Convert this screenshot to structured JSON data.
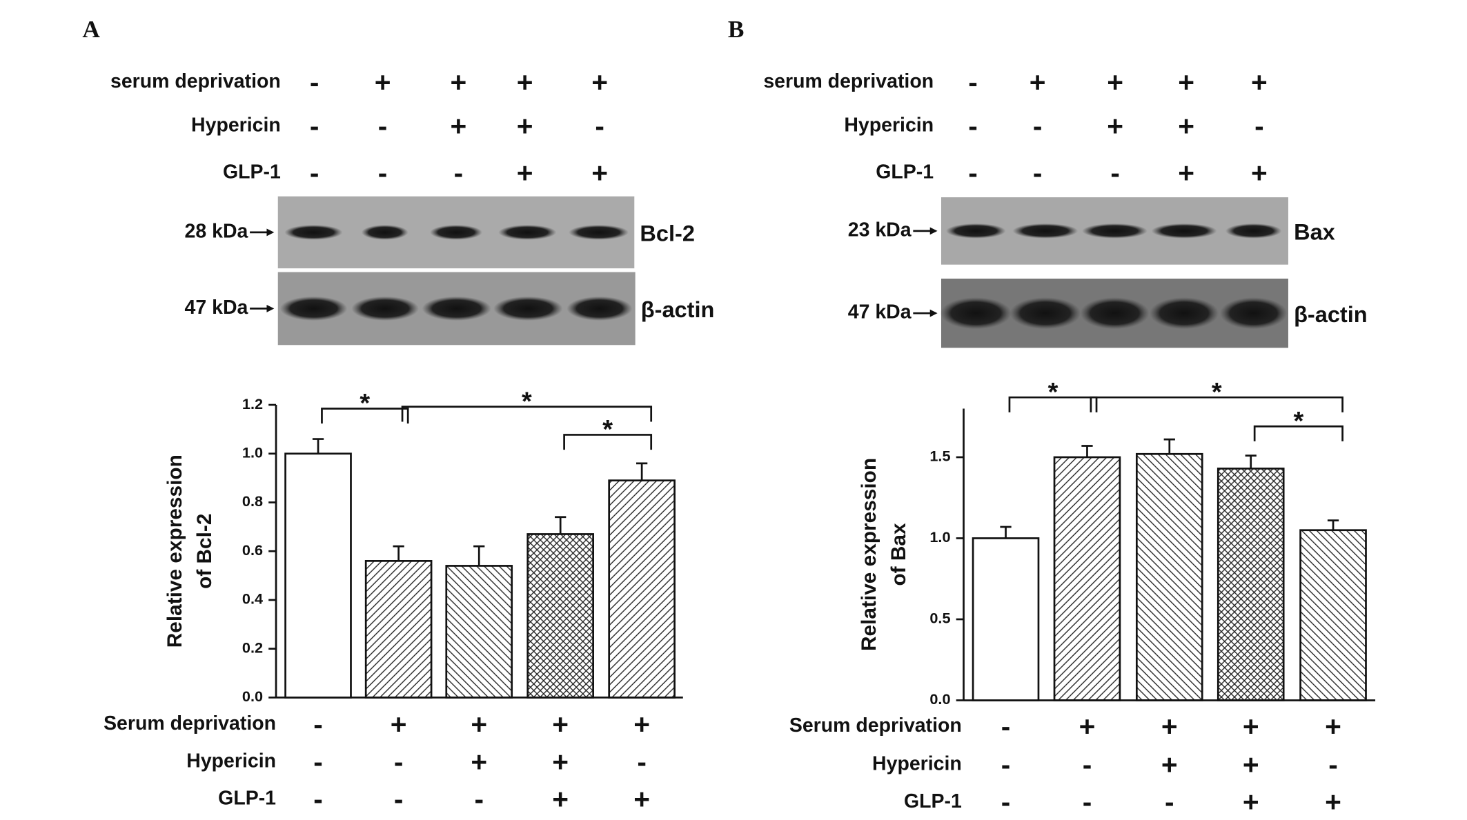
{
  "chart_data": [
    {
      "type": "bar",
      "panel": "A",
      "blot_conditions": [
        {
          "name": "serum deprivation",
          "values": [
            "-",
            "+",
            "+",
            "+",
            "+"
          ]
        },
        {
          "name": "Hypericin",
          "values": [
            "-",
            "-",
            "+",
            "+",
            "-"
          ]
        },
        {
          "name": "GLP-1",
          "values": [
            "-",
            "-",
            "-",
            "+",
            "+"
          ]
        }
      ],
      "blots": [
        {
          "size": "28 kDa",
          "protein": "Bcl-2"
        },
        {
          "size": "47 kDa",
          "protein": "β-actin"
        }
      ],
      "y_label": [
        "Relative expression",
        "of Bcl-2"
      ],
      "values": [
        1.0,
        0.56,
        0.54,
        0.67,
        0.89
      ],
      "errors": [
        0.06,
        0.06,
        0.08,
        0.07,
        0.07
      ],
      "patterns": [
        "none",
        "forward",
        "backward",
        "cross",
        "forward"
      ],
      "ylim": [
        0,
        1.2
      ],
      "yticks": [
        {
          "value": 0,
          "label": "0.0"
        },
        0.2,
        0.4,
        0.6,
        0.8,
        {
          "value": 1,
          "label": "1.0"
        },
        1.2
      ],
      "significance": [
        {
          "from": 0,
          "to": 1,
          "label": "*"
        },
        {
          "from": 1,
          "to": 4,
          "label": "*"
        },
        {
          "from": 3,
          "to": 4,
          "label": "*"
        }
      ],
      "conditions": [
        {
          "name": "Serum deprivation",
          "values": [
            "-",
            "+",
            "+",
            "+",
            "+"
          ]
        },
        {
          "name": "Hypericin",
          "values": [
            "-",
            "-",
            "+",
            "+",
            "-"
          ]
        },
        {
          "name": "GLP-1",
          "values": [
            "-",
            "-",
            "-",
            "+",
            "+"
          ]
        }
      ]
    },
    {
      "type": "bar",
      "panel": "B",
      "blot_conditions": [
        {
          "name": "serum deprivation",
          "values": [
            "-",
            "+",
            "+",
            "+",
            "+"
          ]
        },
        {
          "name": "Hypericin",
          "values": [
            "-",
            "-",
            "+",
            "+",
            "-"
          ]
        },
        {
          "name": "GLP-1",
          "values": [
            "-",
            "-",
            "-",
            "+",
            "+"
          ]
        }
      ],
      "blots": [
        {
          "size": "23 kDa",
          "protein": "Bax"
        },
        {
          "size": "47 kDa",
          "protein": "β-actin"
        }
      ],
      "y_label": [
        "Relative expression",
        "of Bax"
      ],
      "values": [
        1.0,
        1.5,
        1.52,
        1.43,
        1.05
      ],
      "errors": [
        0.07,
        0.07,
        0.09,
        0.08,
        0.06
      ],
      "patterns": [
        "none",
        "forward",
        "backward",
        "cross",
        "backward"
      ],
      "ylim": [
        0,
        1.8
      ],
      "yticks": [
        {
          "value": 0,
          "label": "0.0"
        },
        0.5,
        {
          "value": 1,
          "label": "1.0"
        },
        1.5
      ],
      "significance": [
        {
          "from": 0,
          "to": 1,
          "label": "*"
        },
        {
          "from": 1,
          "to": 4,
          "label": "*"
        },
        {
          "from": 3,
          "to": 4,
          "label": "*"
        }
      ],
      "conditions": [
        {
          "name": "Serum deprivation",
          "values": [
            "-",
            "+",
            "+",
            "+",
            "+"
          ]
        },
        {
          "name": "Hypericin",
          "values": [
            "-",
            "-",
            "+",
            "+",
            "-"
          ]
        },
        {
          "name": "GLP-1",
          "values": [
            "-",
            "-",
            "-",
            "+",
            "+"
          ]
        }
      ]
    }
  ]
}
